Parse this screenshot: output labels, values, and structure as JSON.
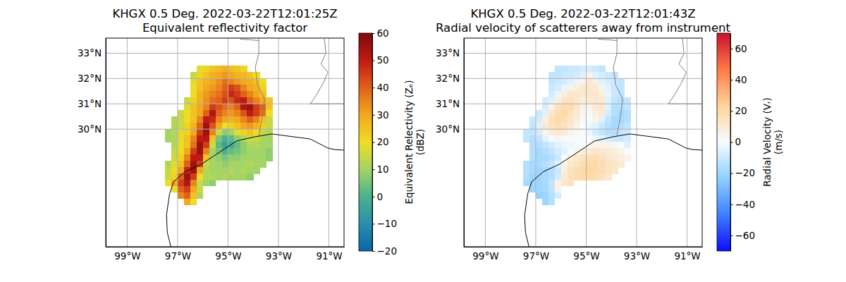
{
  "chart_data": [
    {
      "type": "heatmap",
      "title": [
        "KHGX 0.5 Deg. 2022-03-22T12:01:25Z",
        "Equivalent reflectivity factor"
      ],
      "color": "HomeyerRainbow",
      "xlim": [
        -99.85,
        -90.4
      ],
      "ylim": [
        25.35,
        33.6
      ],
      "xticks": [
        {
          "value": -99,
          "label": "99°W"
        },
        {
          "value": -97,
          "label": "97°W"
        },
        {
          "value": -95,
          "label": "95°W"
        },
        {
          "value": -93,
          "label": "93°W"
        },
        {
          "value": -91,
          "label": "91°W"
        }
      ],
      "yticks": [
        {
          "value": 30,
          "label": "30°N"
        },
        {
          "value": 31,
          "label": "31°N"
        },
        {
          "value": 32,
          "label": "32°N"
        },
        {
          "value": 33,
          "label": "33°N"
        }
      ],
      "grid": true,
      "x": [
        -97.375,
        -97.125,
        -96.875,
        -96.625,
        -96.375,
        -96.125,
        -95.875,
        -95.625,
        -95.375,
        -95.125,
        -94.875,
        -94.625,
        -94.375,
        -94.125,
        -93.875,
        -93.625,
        -93.375
      ],
      "y": [
        32.375,
        32.125,
        31.875,
        31.625,
        31.375,
        31.125,
        30.875,
        30.625,
        30.375,
        30.125,
        29.875,
        29.625,
        29.375,
        29.125,
        28.875,
        28.625,
        28.375,
        28.125,
        27.875,
        27.625,
        27.375,
        27.125
      ],
      "cells": [
        [
          null,
          null,
          null,
          null,
          null,
          18,
          22,
          25,
          26,
          28,
          26,
          24,
          22,
          null,
          null,
          null,
          null
        ],
        [
          null,
          null,
          null,
          null,
          15,
          22,
          25,
          28,
          30,
          32,
          30,
          28,
          27,
          25,
          20,
          null,
          null
        ],
        [
          null,
          null,
          null,
          null,
          18,
          25,
          28,
          30,
          33,
          38,
          35,
          32,
          30,
          28,
          25,
          20,
          null
        ],
        [
          null,
          null,
          null,
          null,
          20,
          25,
          30,
          32,
          35,
          40,
          45,
          42,
          35,
          30,
          28,
          22,
          null
        ],
        [
          null,
          null,
          null,
          null,
          20,
          28,
          32,
          35,
          38,
          42,
          48,
          45,
          40,
          35,
          30,
          25,
          null
        ],
        [
          null,
          null,
          null,
          15,
          22,
          28,
          33,
          38,
          40,
          45,
          42,
          48,
          50,
          40,
          35,
          30,
          25
        ],
        [
          null,
          null,
          null,
          18,
          25,
          30,
          35,
          45,
          42,
          38,
          35,
          40,
          52,
          55,
          45,
          40,
          25
        ],
        [
          null,
          null,
          15,
          20,
          25,
          30,
          40,
          52,
          40,
          35,
          32,
          35,
          42,
          50,
          45,
          38,
          20
        ],
        [
          null,
          12,
          15,
          20,
          25,
          35,
          50,
          48,
          35,
          30,
          28,
          30,
          35,
          40,
          35,
          25,
          15
        ],
        [
          null,
          12,
          15,
          22,
          28,
          40,
          55,
          42,
          30,
          20,
          22,
          25,
          30,
          32,
          28,
          22,
          15
        ],
        [
          10,
          12,
          18,
          22,
          30,
          45,
          55,
          35,
          15,
          8,
          10,
          18,
          22,
          25,
          20,
          15,
          12
        ],
        [
          10,
          12,
          18,
          25,
          35,
          50,
          52,
          25,
          5,
          0,
          2,
          8,
          12,
          15,
          15,
          12,
          10
        ],
        [
          null,
          12,
          20,
          25,
          38,
          55,
          45,
          15,
          2,
          -5,
          -2,
          3,
          8,
          12,
          12,
          10,
          10
        ],
        [
          null,
          15,
          20,
          30,
          45,
          55,
          35,
          10,
          5,
          0,
          3,
          5,
          8,
          10,
          10,
          10,
          8
        ],
        [
          null,
          15,
          22,
          35,
          50,
          50,
          25,
          10,
          8,
          5,
          8,
          8,
          10,
          10,
          10,
          10,
          8
        ],
        [
          12,
          18,
          25,
          40,
          55,
          45,
          15,
          10,
          10,
          8,
          10,
          10,
          10,
          12,
          10,
          10,
          null
        ],
        [
          15,
          20,
          30,
          48,
          55,
          30,
          12,
          10,
          10,
          10,
          12,
          10,
          12,
          10,
          10,
          null,
          null
        ],
        [
          15,
          22,
          40,
          55,
          45,
          20,
          12,
          12,
          10,
          12,
          10,
          10,
          10,
          8,
          null,
          null,
          null
        ],
        [
          20,
          30,
          45,
          52,
          35,
          15,
          10,
          8,
          null,
          null,
          null,
          null,
          null,
          null,
          null,
          null,
          null
        ],
        [
          null,
          20,
          40,
          45,
          30,
          15,
          null,
          null,
          null,
          null,
          null,
          null,
          null,
          null,
          null,
          null,
          null
        ],
        [
          null,
          null,
          35,
          40,
          25,
          12,
          null,
          null,
          null,
          null,
          null,
          null,
          null,
          null,
          null,
          null,
          null
        ],
        [
          null,
          null,
          null,
          30,
          20,
          null,
          null,
          null,
          null,
          null,
          null,
          null,
          null,
          null,
          null,
          null,
          null
        ]
      ],
      "zlim": [
        -20,
        60
      ],
      "zticks": [
        {
          "value": -20,
          "label": "−20"
        },
        {
          "value": -10,
          "label": "−10"
        },
        0,
        10,
        20,
        30,
        40,
        50,
        60
      ],
      "colorbar_label": [
        "Equivalent Relectivity (Zₑ)",
        "(dBZ)"
      ],
      "coastline": {
        "lon": [
          -97.27,
          -97.41,
          -97.44,
          -97.32,
          -97.16,
          -96.71,
          -96.07,
          -95.59,
          -95.09,
          -94.67,
          -93.97,
          -93.27,
          -92.58,
          -91.74,
          -91.04,
          -90.76,
          -90.4
        ],
        "lat": [
          25.36,
          25.92,
          26.61,
          27.44,
          27.92,
          28.31,
          28.61,
          28.92,
          29.25,
          29.53,
          29.69,
          29.81,
          29.72,
          29.61,
          29.25,
          29.19,
          29.17
        ]
      },
      "borders": [
        {
          "lon": [
            -93.78,
            -93.64,
            -93.55,
            -93.83,
            -93.92,
            -93.78,
            -93.78
          ],
          "lat": [
            29.75,
            30.5,
            31.19,
            31.75,
            32.44,
            33.0,
            33.58
          ]
        },
        {
          "lon": [
            -94.53,
            -94.11,
            -93.78
          ],
          "lat": [
            33.56,
            33.53,
            33.5
          ]
        },
        {
          "lon": [
            -93.78,
            -91.18
          ],
          "lat": [
            33.0,
            33.0
          ]
        },
        {
          "lon": [
            -91.18,
            -91.12,
            -91.32,
            -91.04,
            -91.23,
            -91.51,
            -91.74,
            -90.4
          ],
          "lat": [
            33.58,
            33.0,
            32.58,
            32.25,
            31.81,
            31.33,
            31.0,
            31.0
          ]
        }
      ]
    },
    {
      "type": "heatmap",
      "title": [
        "KHGX 0.5 Deg. 2022-03-22T12:01:43Z",
        "Radial velocity of scatterers away from instrument"
      ],
      "color": "BuDRd18",
      "xlim": [
        -99.85,
        -90.4
      ],
      "ylim": [
        25.35,
        33.6
      ],
      "xticks": [
        {
          "value": -99,
          "label": "99°W"
        },
        {
          "value": -97,
          "label": "97°W"
        },
        {
          "value": -95,
          "label": "95°W"
        },
        {
          "value": -93,
          "label": "93°W"
        },
        {
          "value": -91,
          "label": "91°W"
        }
      ],
      "yticks": [
        {
          "value": 30,
          "label": "30°N"
        },
        {
          "value": 31,
          "label": "31°N"
        },
        {
          "value": 32,
          "label": "32°N"
        },
        {
          "value": 33,
          "label": "33°N"
        }
      ],
      "grid": true,
      "x": [
        -97.375,
        -97.125,
        -96.875,
        -96.625,
        -96.375,
        -96.125,
        -95.875,
        -95.625,
        -95.375,
        -95.125,
        -94.875,
        -94.625,
        -94.375,
        -94.125,
        -93.875,
        -93.625,
        -93.375
      ],
      "y": [
        32.375,
        32.125,
        31.875,
        31.625,
        31.375,
        31.125,
        30.875,
        30.625,
        30.375,
        30.125,
        29.875,
        29.625,
        29.375,
        29.125,
        28.875,
        28.625,
        28.375,
        28.125,
        27.875,
        27.625,
        27.375,
        27.125
      ],
      "cells": [
        [
          null,
          null,
          null,
          null,
          null,
          -12,
          -12,
          -10,
          -10,
          -8,
          -8,
          -10,
          -12,
          null,
          null,
          null,
          null
        ],
        [
          null,
          null,
          null,
          null,
          -12,
          -12,
          -10,
          -10,
          -8,
          -5,
          5,
          -5,
          -8,
          -10,
          -12,
          null,
          null
        ],
        [
          null,
          null,
          null,
          null,
          -12,
          -10,
          -8,
          -5,
          -3,
          5,
          10,
          8,
          -5,
          -8,
          -10,
          -12,
          null
        ],
        [
          null,
          null,
          null,
          null,
          -10,
          -8,
          -3,
          5,
          8,
          10,
          12,
          10,
          5,
          -5,
          -10,
          -12,
          null
        ],
        [
          null,
          null,
          null,
          null,
          -8,
          -3,
          8,
          12,
          12,
          10,
          12,
          12,
          8,
          -3,
          -10,
          -12,
          null
        ],
        [
          null,
          null,
          null,
          -8,
          -5,
          8,
          15,
          15,
          12,
          8,
          10,
          12,
          10,
          -5,
          -12,
          -15,
          -12
        ],
        [
          null,
          null,
          null,
          -8,
          5,
          15,
          18,
          18,
          12,
          5,
          5,
          10,
          12,
          -5,
          -15,
          -15,
          -12
        ],
        [
          null,
          null,
          -10,
          -5,
          12,
          18,
          20,
          15,
          10,
          3,
          2,
          8,
          10,
          -8,
          -15,
          -18,
          -15
        ],
        [
          null,
          -10,
          -8,
          8,
          15,
          20,
          18,
          12,
          8,
          2,
          0,
          5,
          -5,
          -12,
          -18,
          -18,
          -15
        ],
        [
          null,
          -12,
          -5,
          10,
          15,
          18,
          15,
          10,
          5,
          0,
          -2,
          -5,
          -10,
          -15,
          -18,
          -15,
          -12
        ],
        [
          -12,
          -12,
          -8,
          5,
          10,
          12,
          10,
          5,
          2,
          0,
          -3,
          -8,
          -12,
          -15,
          -15,
          -12,
          -10
        ],
        [
          -12,
          -15,
          -12,
          -5,
          0,
          3,
          2,
          0,
          0,
          0,
          0,
          -3,
          -5,
          -8,
          -10,
          -10,
          -8
        ],
        [
          null,
          -15,
          -15,
          -12,
          -8,
          -5,
          -3,
          -2,
          0,
          0,
          2,
          5,
          5,
          5,
          3,
          0,
          -5
        ],
        [
          null,
          -15,
          -18,
          -15,
          -12,
          -8,
          -5,
          0,
          5,
          8,
          10,
          12,
          12,
          10,
          8,
          5,
          0
        ],
        [
          null,
          -15,
          -18,
          -18,
          -15,
          -10,
          0,
          8,
          12,
          15,
          18,
          18,
          15,
          12,
          10,
          8,
          5
        ],
        [
          -15,
          -18,
          -18,
          -15,
          -12,
          -5,
          5,
          12,
          15,
          18,
          20,
          20,
          18,
          15,
          12,
          10,
          null
        ],
        [
          -15,
          -18,
          -20,
          -18,
          -15,
          -10,
          8,
          15,
          18,
          20,
          22,
          20,
          18,
          15,
          12,
          null,
          null
        ],
        [
          -15,
          -20,
          -20,
          -18,
          -15,
          -8,
          10,
          15,
          18,
          20,
          20,
          18,
          15,
          12,
          null,
          null,
          null
        ],
        [
          -18,
          -20,
          -20,
          -18,
          -12,
          5,
          12,
          15,
          null,
          null,
          null,
          null,
          null,
          null,
          null,
          null,
          null
        ],
        [
          null,
          -20,
          -20,
          -18,
          -12,
          5,
          null,
          null,
          null,
          null,
          null,
          null,
          null,
          null,
          null,
          null,
          null
        ],
        [
          null,
          null,
          -22,
          -20,
          -15,
          -8,
          null,
          null,
          null,
          null,
          null,
          null,
          null,
          null,
          null,
          null,
          null
        ],
        [
          null,
          null,
          null,
          -20,
          -15,
          null,
          null,
          null,
          null,
          null,
          null,
          null,
          null,
          null,
          null,
          null,
          null
        ]
      ],
      "zlim": [
        -70,
        70
      ],
      "zticks": [
        {
          "value": -60,
          "label": "−60"
        },
        {
          "value": -40,
          "label": "−40"
        },
        {
          "value": -20,
          "label": "−20"
        },
        0,
        20,
        40,
        60
      ],
      "colorbar_label": [
        "Radial Velocity (Vᵣ)",
        "(m/s)"
      ],
      "coastline": {
        "lon": [
          -97.27,
          -97.41,
          -97.44,
          -97.32,
          -97.16,
          -96.71,
          -96.07,
          -95.59,
          -95.09,
          -94.67,
          -93.97,
          -93.27,
          -92.58,
          -91.74,
          -91.04,
          -90.76,
          -90.4
        ],
        "lat": [
          25.36,
          25.92,
          26.61,
          27.44,
          27.92,
          28.31,
          28.61,
          28.92,
          29.25,
          29.53,
          29.69,
          29.81,
          29.72,
          29.61,
          29.25,
          29.19,
          29.17
        ]
      },
      "borders": [
        {
          "lon": [
            -93.78,
            -93.64,
            -93.55,
            -93.83,
            -93.92,
            -93.78,
            -93.78
          ],
          "lat": [
            29.75,
            30.5,
            31.19,
            31.75,
            32.44,
            33.0,
            33.58
          ]
        },
        {
          "lon": [
            -94.53,
            -94.11,
            -93.78
          ],
          "lat": [
            33.56,
            33.53,
            33.5
          ]
        },
        {
          "lon": [
            -93.78,
            -91.18
          ],
          "lat": [
            33.0,
            33.0
          ]
        },
        {
          "lon": [
            -91.18,
            -91.12,
            -91.32,
            -91.04,
            -91.23,
            -91.51,
            -91.74,
            -90.4
          ],
          "lat": [
            33.58,
            33.0,
            32.58,
            32.25,
            31.81,
            31.33,
            31.0,
            31.0
          ]
        }
      ]
    }
  ]
}
